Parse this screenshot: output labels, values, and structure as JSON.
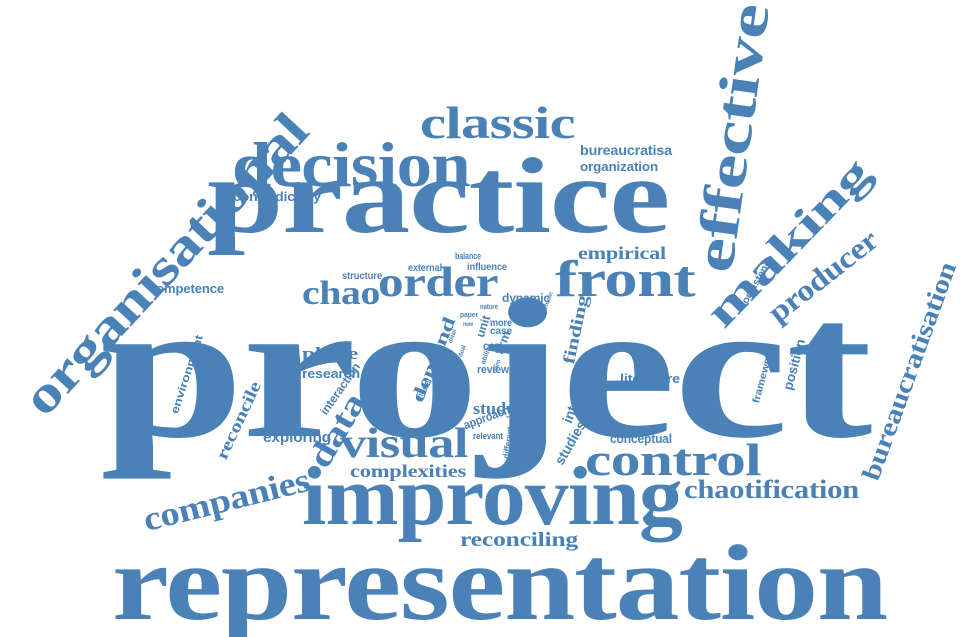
{
  "cloud": {
    "accent_color": "#4a82b8",
    "words": [
      {
        "text": "project"
      },
      {
        "text": "representation"
      },
      {
        "text": "practice"
      },
      {
        "text": "improving"
      },
      {
        "text": "organisational"
      },
      {
        "text": "decision"
      },
      {
        "text": "effective"
      },
      {
        "text": "classic"
      },
      {
        "text": "making"
      },
      {
        "text": "front"
      },
      {
        "text": "order"
      },
      {
        "text": "control"
      },
      {
        "text": "companies"
      },
      {
        "text": "visual"
      },
      {
        "text": "producer"
      },
      {
        "text": "bureaucratisation"
      },
      {
        "text": "chaotification"
      },
      {
        "text": "chao"
      },
      {
        "text": "data"
      },
      {
        "text": "reconciling"
      },
      {
        "text": "complexities"
      },
      {
        "text": "empirical"
      },
      {
        "text": "finding"
      },
      {
        "text": "demand"
      },
      {
        "text": "phase"
      },
      {
        "text": "research"
      },
      {
        "text": "exploring"
      },
      {
        "text": "reconcile"
      },
      {
        "text": "competence"
      },
      {
        "text": "contradictory"
      },
      {
        "text": "bureaucratisa"
      },
      {
        "text": "organization"
      },
      {
        "text": "literature"
      },
      {
        "text": "conceptual"
      },
      {
        "text": "position"
      },
      {
        "text": "framework"
      },
      {
        "text": "coexistence"
      },
      {
        "text": "interview"
      },
      {
        "text": "studies"
      },
      {
        "text": "study"
      },
      {
        "text": "approach"
      },
      {
        "text": "interaction"
      },
      {
        "text": "environment"
      },
      {
        "text": "dynamic"
      },
      {
        "text": "influence"
      },
      {
        "text": "structure"
      },
      {
        "text": "external"
      },
      {
        "text": "balance"
      },
      {
        "text": "review"
      },
      {
        "text": "firm"
      },
      {
        "text": "case"
      },
      {
        "text": "cop"
      },
      {
        "text": "more"
      },
      {
        "text": "unit"
      },
      {
        "text": "relevant"
      },
      {
        "text": "different"
      },
      {
        "text": "model"
      },
      {
        "text": "ability"
      },
      {
        "text": "paper"
      },
      {
        "text": "nature"
      },
      {
        "text": "detail"
      },
      {
        "text": "deal"
      },
      {
        "text": "claim"
      },
      {
        "text": "chaotic"
      },
      {
        "text": "new"
      }
    ]
  }
}
